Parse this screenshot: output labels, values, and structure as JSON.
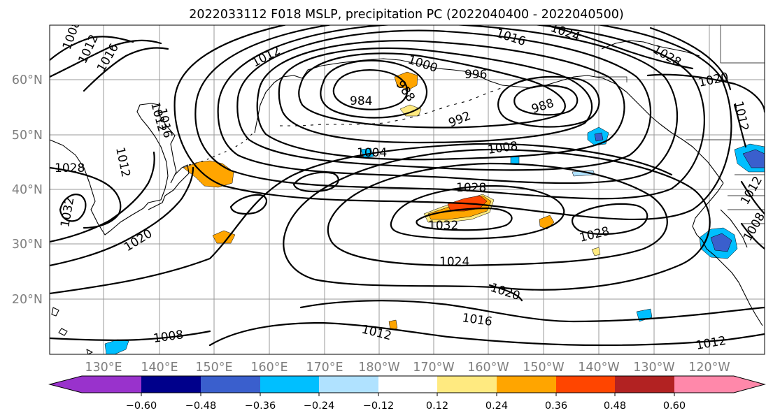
{
  "title": "2022033112 F018 MSLP, precipitation PC (2022040400 - 2022040500)",
  "map": {
    "lat_labels": [
      "20°N",
      "30°N",
      "40°N",
      "50°N",
      "60°N"
    ],
    "lon_labels": [
      "130°E",
      "140°E",
      "150°E",
      "160°E",
      "170°E",
      "180°W",
      "170°W",
      "160°W",
      "150°W",
      "140°W",
      "130°W",
      "120°W"
    ],
    "isobar_labels": [
      "1008",
      "1012",
      "1016",
      "1012",
      "1012",
      "1024",
      "1016",
      "1028",
      "1000",
      "996",
      "984",
      "988",
      "992",
      "988",
      "1020",
      "1012",
      "1016",
      "1012",
      "1028",
      "1032",
      "1020",
      "1004",
      "1008",
      "1028",
      "1032",
      "1028",
      "1024",
      "1020",
      "1016",
      "1012",
      "1012",
      "1008",
      "1012",
      "1008"
    ],
    "fill_colors": {
      "positive_weak": "#ffea80",
      "positive_mid": "#ffa500",
      "positive_strong": "#ff4500",
      "negative_weak": "#b0e2ff",
      "negative_mid": "#00bfff",
      "negative_strong": "#3a5fcd"
    }
  },
  "colorbar": {
    "colors": [
      "#9932cc",
      "#00008b",
      "#3a5fcd",
      "#00bfff",
      "#b0e2ff",
      "#ffffff",
      "#ffea80",
      "#ffa500",
      "#ff4500",
      "#b22222",
      "#ff88aa"
    ],
    "tick_labels": [
      "−0.60",
      "−0.48",
      "−0.36",
      "−0.24",
      "−0.12",
      "0.12",
      "0.24",
      "0.36",
      "0.48",
      "0.60"
    ]
  }
}
